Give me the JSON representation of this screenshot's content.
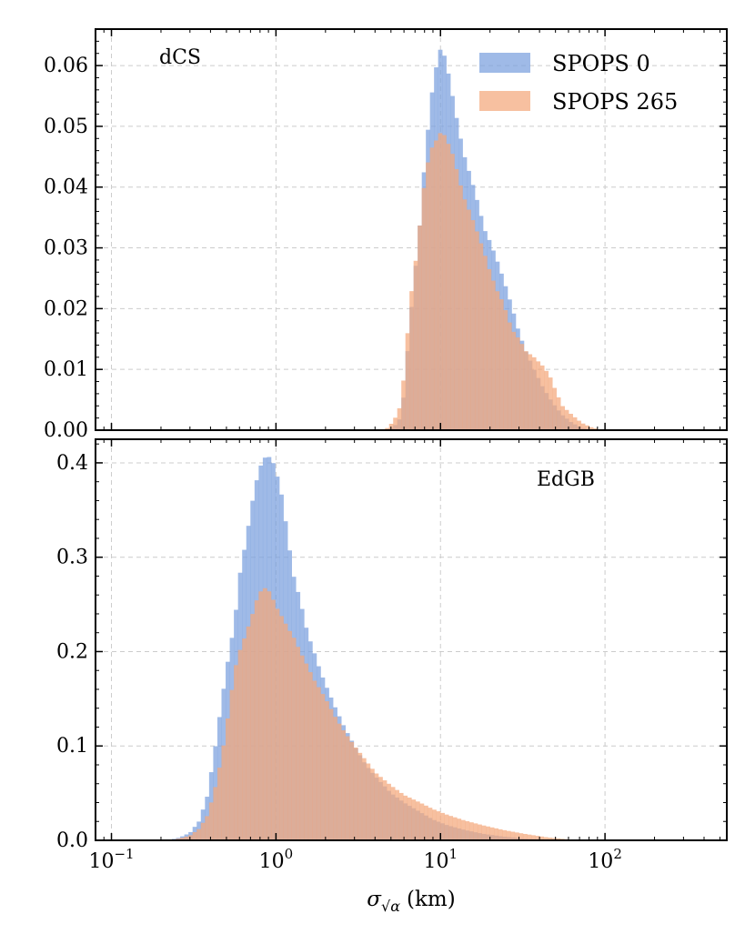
{
  "chart_data": [
    {
      "type": "histogram",
      "panel_label": "dCS",
      "xscale": "log",
      "xlim": [
        0.08,
        550
      ],
      "ylim": [
        0,
        0.066
      ],
      "yticks": [
        0.0,
        0.01,
        0.02,
        0.03,
        0.04,
        0.05,
        0.06
      ],
      "ytick_labels": [
        "0.00",
        "0.01",
        "0.02",
        "0.03",
        "0.04",
        "0.05",
        "0.06"
      ],
      "legend": {
        "placement": "top-right"
      },
      "series": [
        {
          "name": "SPOPS 0",
          "color": "#7aa0de",
          "points": [
            [
              4.6,
              0.0
            ],
            [
              5.2,
              0.0005
            ],
            [
              5.7,
              0.002
            ],
            [
              6.0,
              0.006
            ],
            [
              6.3,
              0.013
            ],
            [
              6.6,
              0.019
            ],
            [
              7.0,
              0.026
            ],
            [
              7.5,
              0.034
            ],
            [
              8.0,
              0.044
            ],
            [
              8.5,
              0.051
            ],
            [
              9.0,
              0.057
            ],
            [
              9.6,
              0.061
            ],
            [
              10.0,
              0.0628
            ],
            [
              10.6,
              0.0615
            ],
            [
              11.2,
              0.0585
            ],
            [
              12.0,
              0.054
            ],
            [
              13.0,
              0.049
            ],
            [
              14.0,
              0.045
            ],
            [
              15.5,
              0.041
            ],
            [
              17.0,
              0.037
            ],
            [
              18.5,
              0.033
            ],
            [
              20.0,
              0.031
            ],
            [
              22.0,
              0.028
            ],
            [
              24.0,
              0.025
            ],
            [
              26.0,
              0.022
            ],
            [
              28.0,
              0.019
            ],
            [
              30.0,
              0.016
            ],
            [
              33.0,
              0.013
            ],
            [
              37.0,
              0.01
            ],
            [
              42.0,
              0.007
            ],
            [
              48.0,
              0.0045
            ],
            [
              55.0,
              0.0025
            ],
            [
              63.0,
              0.0012
            ],
            [
              72.0,
              0.0004
            ],
            [
              85.0,
              0.0
            ]
          ]
        },
        {
          "name": "SPOPS 265",
          "color": "#f4a77c",
          "points": [
            [
              4.6,
              0.0
            ],
            [
              5.2,
              0.0015
            ],
            [
              5.7,
              0.004
            ],
            [
              6.0,
              0.009
            ],
            [
              6.3,
              0.016
            ],
            [
              6.6,
              0.022
            ],
            [
              7.0,
              0.027
            ],
            [
              7.5,
              0.034
            ],
            [
              8.0,
              0.041
            ],
            [
              8.5,
              0.045
            ],
            [
              9.0,
              0.047
            ],
            [
              9.6,
              0.048
            ],
            [
              10.0,
              0.049
            ],
            [
              10.6,
              0.0485
            ],
            [
              11.2,
              0.047
            ],
            [
              12.0,
              0.045
            ],
            [
              13.0,
              0.041
            ],
            [
              14.0,
              0.038
            ],
            [
              15.5,
              0.035
            ],
            [
              17.0,
              0.032
            ],
            [
              18.5,
              0.029
            ],
            [
              20.0,
              0.026
            ],
            [
              22.0,
              0.023
            ],
            [
              24.0,
              0.021
            ],
            [
              26.0,
              0.018
            ],
            [
              28.0,
              0.016
            ],
            [
              30.0,
              0.015
            ],
            [
              33.0,
              0.013
            ],
            [
              37.0,
              0.012
            ],
            [
              42.0,
              0.0105
            ],
            [
              46.0,
              0.009
            ],
            [
              50.0,
              0.0065
            ],
            [
              55.0,
              0.004
            ],
            [
              63.0,
              0.0025
            ],
            [
              72.0,
              0.0012
            ],
            [
              82.0,
              0.0005
            ],
            [
              95.0,
              0.0
            ]
          ]
        }
      ]
    },
    {
      "type": "histogram",
      "panel_label": "EdGB",
      "xscale": "log",
      "xlim": [
        0.08,
        550
      ],
      "ylim": [
        0,
        0.425
      ],
      "yticks": [
        0.0,
        0.1,
        0.2,
        0.3,
        0.4
      ],
      "ytick_labels": [
        "0.0",
        "0.1",
        "0.2",
        "0.3",
        "0.4"
      ],
      "xticks": [
        0.1,
        1,
        10,
        100
      ],
      "xtick_bases": [
        "10",
        "10",
        "10",
        "10"
      ],
      "xtick_exponents": [
        "−1",
        "0",
        "1",
        "2"
      ],
      "xlabel_symbol": "σ",
      "xlabel_subscript": "√α",
      "xlabel_unit": "(km)",
      "series": [
        {
          "name": "SPOPS 0",
          "color": "#7aa0de",
          "points": [
            [
              0.22,
              0.0
            ],
            [
              0.26,
              0.003
            ],
            [
              0.3,
              0.008
            ],
            [
              0.34,
              0.02
            ],
            [
              0.38,
              0.045
            ],
            [
              0.42,
              0.09
            ],
            [
              0.47,
              0.15
            ],
            [
              0.52,
              0.2
            ],
            [
              0.56,
              0.23
            ],
            [
              0.6,
              0.28
            ],
            [
              0.66,
              0.32
            ],
            [
              0.72,
              0.36
            ],
            [
              0.78,
              0.39
            ],
            [
              0.84,
              0.405
            ],
            [
              0.9,
              0.407
            ],
            [
              0.96,
              0.4
            ],
            [
              1.02,
              0.385
            ],
            [
              1.1,
              0.36
            ],
            [
              1.18,
              0.32
            ],
            [
              1.28,
              0.28
            ],
            [
              1.4,
              0.255
            ],
            [
              1.55,
              0.22
            ],
            [
              1.7,
              0.2
            ],
            [
              1.85,
              0.18
            ],
            [
              2.0,
              0.165
            ],
            [
              2.3,
              0.14
            ],
            [
              2.6,
              0.12
            ],
            [
              3.0,
              0.1
            ],
            [
              3.5,
              0.08
            ],
            [
              4.0,
              0.068
            ],
            [
              5.0,
              0.05
            ],
            [
              6.0,
              0.04
            ],
            [
              7.5,
              0.03
            ],
            [
              9.0,
              0.022
            ],
            [
              11.0,
              0.016
            ],
            [
              14.0,
              0.011
            ],
            [
              18.0,
              0.007
            ],
            [
              24.0,
              0.004
            ],
            [
              32.0,
              0.002
            ],
            [
              45.0,
              0.0008
            ],
            [
              60.0,
              0.0
            ]
          ]
        },
        {
          "name": "SPOPS 265",
          "color": "#f4a77c",
          "points": [
            [
              0.22,
              0.0
            ],
            [
              0.26,
              0.002
            ],
            [
              0.3,
              0.005
            ],
            [
              0.34,
              0.012
            ],
            [
              0.38,
              0.025
            ],
            [
              0.42,
              0.05
            ],
            [
              0.47,
              0.09
            ],
            [
              0.52,
              0.14
            ],
            [
              0.56,
              0.18
            ],
            [
              0.6,
              0.2
            ],
            [
              0.66,
              0.22
            ],
            [
              0.72,
              0.24
            ],
            [
              0.78,
              0.26
            ],
            [
              0.84,
              0.268
            ],
            [
              0.9,
              0.265
            ],
            [
              0.96,
              0.255
            ],
            [
              1.02,
              0.245
            ],
            [
              1.1,
              0.235
            ],
            [
              1.18,
              0.225
            ],
            [
              1.28,
              0.215
            ],
            [
              1.4,
              0.2
            ],
            [
              1.55,
              0.185
            ],
            [
              1.7,
              0.17
            ],
            [
              1.85,
              0.16
            ],
            [
              2.0,
              0.15
            ],
            [
              2.3,
              0.13
            ],
            [
              2.6,
              0.115
            ],
            [
              3.0,
              0.1
            ],
            [
              3.5,
              0.085
            ],
            [
              4.0,
              0.072
            ],
            [
              5.0,
              0.058
            ],
            [
              6.0,
              0.048
            ],
            [
              7.5,
              0.04
            ],
            [
              9.0,
              0.033
            ],
            [
              11.0,
              0.027
            ],
            [
              14.0,
              0.021
            ],
            [
              18.0,
              0.016
            ],
            [
              24.0,
              0.011
            ],
            [
              32.0,
              0.007
            ],
            [
              45.0,
              0.003
            ],
            [
              60.0,
              0.001
            ],
            [
              80.0,
              0.0
            ]
          ]
        }
      ]
    }
  ]
}
